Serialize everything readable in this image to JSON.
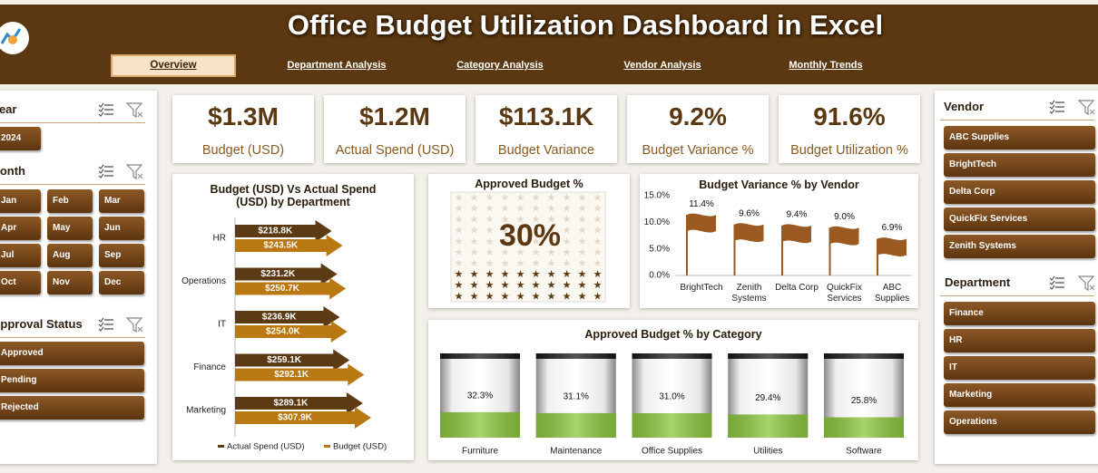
{
  "header": {
    "title": "Office Budget Utilization Dashboard in Excel"
  },
  "nav": {
    "items": [
      "Overview",
      "Department Analysis",
      "Category Analysis",
      "Vendor Analysis",
      "Monthly Trends"
    ]
  },
  "slicers": [
    {
      "title": "Year",
      "items": [
        "2024"
      ]
    },
    {
      "title": "Month",
      "items": [
        "Jan",
        "Feb",
        "Mar",
        "Apr",
        "May",
        "Jun",
        "Jul",
        "Aug",
        "Sep",
        "Oct",
        "Nov",
        "Dec"
      ]
    },
    {
      "title": "Approval Status",
      "items": [
        "Approved",
        "Pending",
        "Rejected"
      ]
    },
    {
      "title": "Vendor",
      "items": [
        "ABC Supplies",
        "BrightTech",
        "Delta Corp",
        "QuickFix Services",
        "Zenith Systems"
      ]
    },
    {
      "title": "Department",
      "items": [
        "Finance",
        "HR",
        "IT",
        "Marketing",
        "Operations"
      ]
    }
  ],
  "kpis": [
    {
      "value": "$1.3M",
      "label": "Budget (USD)"
    },
    {
      "value": "$1.2M",
      "label": "Actual Spend (USD)"
    },
    {
      "value": "$113.1K",
      "label": "Budget Variance"
    },
    {
      "value": "9.2%",
      "label": "Budget Variance %"
    },
    {
      "value": "91.6%",
      "label": "Budget Utilization %"
    }
  ],
  "chart_data": [
    {
      "type": "hbar",
      "title": "Budget (USD) Vs Actual Spend (USD) by Department",
      "categories": [
        "HR",
        "Operations",
        "IT",
        "Finance",
        "Marketing"
      ],
      "series": [
        {
          "name": "Actual Spend (USD)",
          "color": "#5b3a14",
          "values": [
            218800,
            231200,
            236900,
            259100,
            289100
          ],
          "value_labels": [
            "$218.8K",
            "$231.2K",
            "$236.9K",
            "$259.1K",
            "$289.1K"
          ]
        },
        {
          "name": "Budget (USD)",
          "color": "#b97812",
          "values": [
            243500,
            250700,
            254000,
            292100,
            307900
          ],
          "value_labels": [
            "$243.5K",
            "$250.7K",
            "$254.0K",
            "$292.1K",
            "$307.9K"
          ]
        }
      ],
      "legend": "bottom"
    },
    {
      "type": "waffle",
      "title": "Approved Budget %",
      "values": [
        30
      ],
      "value_labels": [
        "30%"
      ],
      "color": "#5b3a14"
    },
    {
      "type": "bar",
      "title": "Budget Variance % by Vendor",
      "categories": [
        "BrightTech",
        "Zenith Systems",
        "Delta Corp",
        "QuickFix Services",
        "ABC Supplies"
      ],
      "values": [
        11.4,
        9.6,
        9.4,
        9.0,
        6.9
      ],
      "value_labels": [
        "11.4%",
        "9.6%",
        "9.4%",
        "9.0%",
        "6.9%"
      ],
      "color": "#9a5a22",
      "ylim": [
        0,
        15
      ],
      "yticks": [
        {
          "value": 0,
          "label": "0.0%"
        },
        {
          "value": 5,
          "label": "5.0%"
        },
        {
          "value": 10,
          "label": "10.0%"
        },
        {
          "value": 15,
          "label": "15.0%"
        }
      ]
    },
    {
      "type": "gauge",
      "title": "Approved Budget % by Category",
      "categories": [
        "Furniture",
        "Maintenance",
        "Office Supplies",
        "Utilities",
        "Software"
      ],
      "values": [
        32.3,
        31.1,
        31.0,
        29.4,
        25.8
      ],
      "value_labels": [
        "32.3%",
        "31.1%",
        "31.0%",
        "29.4%",
        "25.8%"
      ],
      "color": "#8cc63f",
      "ylim": [
        0,
        100
      ]
    }
  ]
}
